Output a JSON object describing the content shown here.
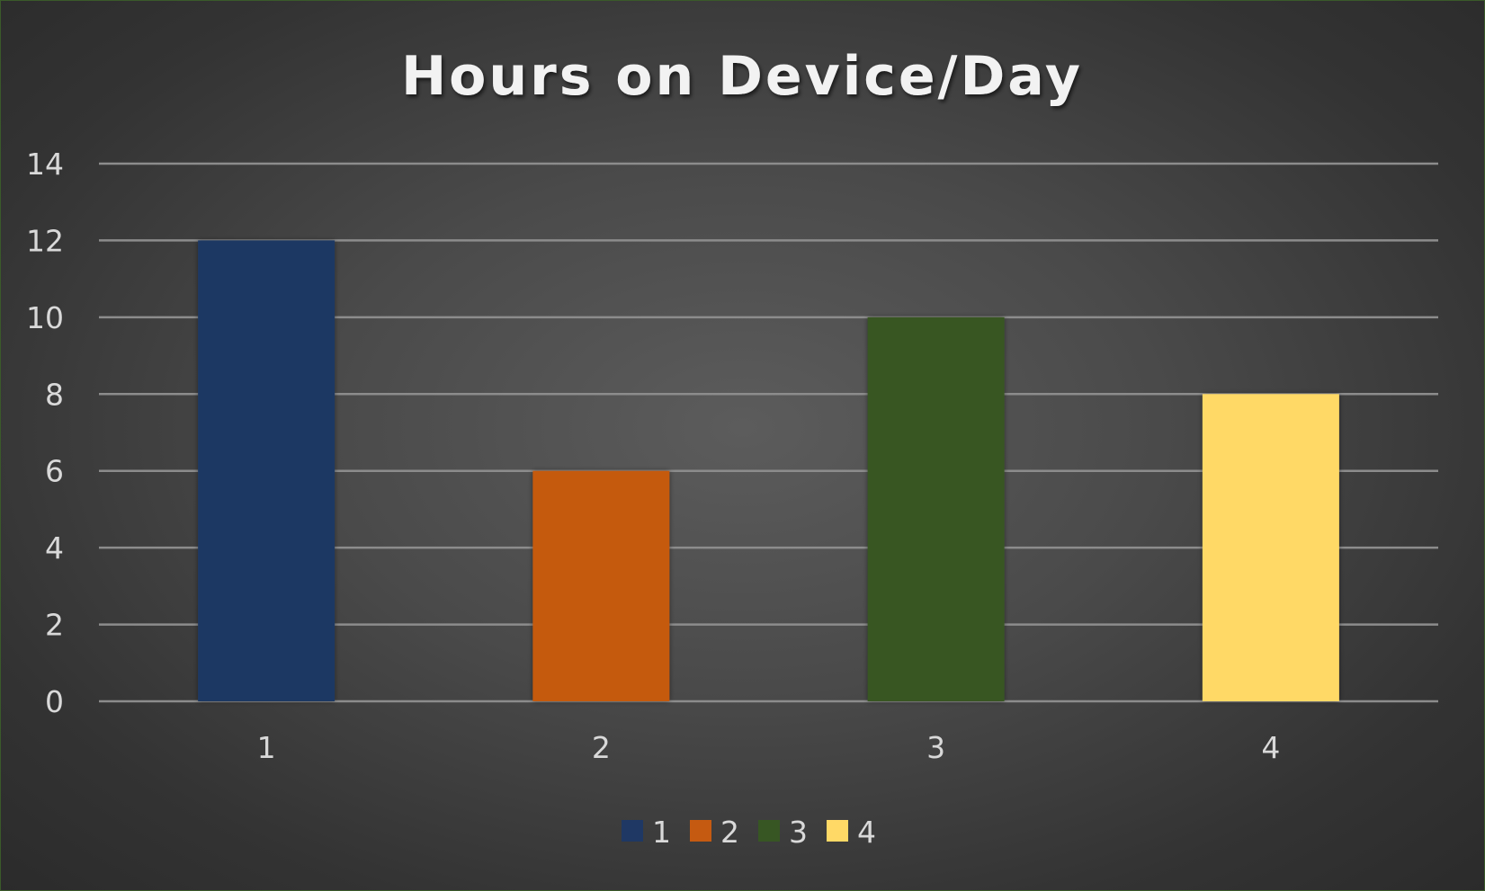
{
  "chart_data": {
    "type": "bar",
    "title": "Hours on Device/Day",
    "xlabel": "",
    "ylabel": "",
    "categories": [
      "1",
      "2",
      "3",
      "4"
    ],
    "values": [
      12,
      6,
      10,
      8
    ],
    "colors": [
      "#1f3864",
      "#c55a11",
      "#375623",
      "#ffd966"
    ],
    "ylim": [
      0,
      14
    ],
    "yticks": [
      "0",
      "2",
      "4",
      "6",
      "8",
      "10",
      "12",
      "14"
    ],
    "grid": true,
    "legend": {
      "placement": "bottom",
      "entries": [
        "1",
        "2",
        "3",
        "4"
      ]
    }
  }
}
